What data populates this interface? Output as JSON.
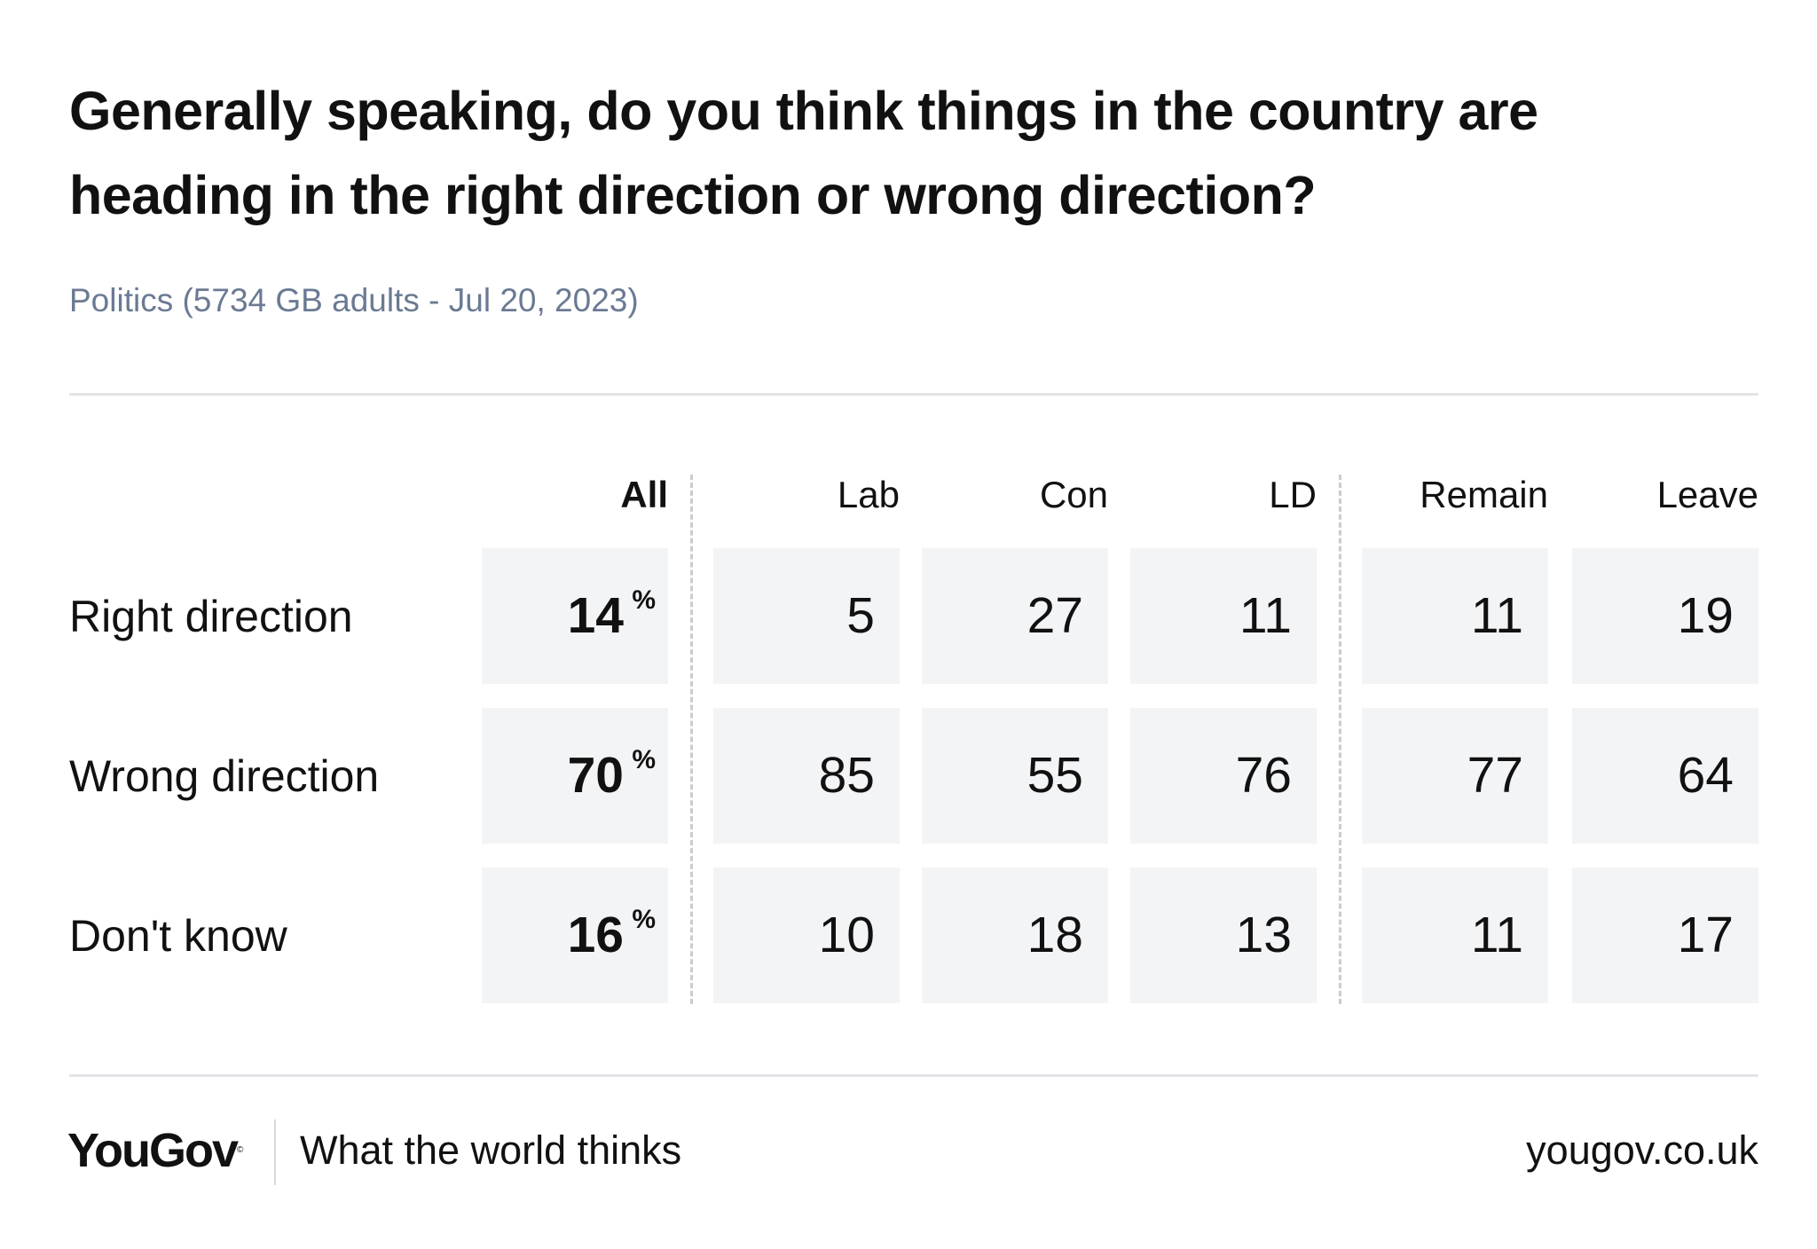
{
  "chart_data": {
    "type": "table",
    "title": "Generally speaking, do you think things in the country are heading in the right direction or wrong direction?",
    "subtitle": "Politics (5734 GB adults - Jul 20, 2023)",
    "columns": [
      "All",
      "Lab",
      "Con",
      "LD",
      "Remain",
      "Leave"
    ],
    "percent_symbol": "%",
    "rows": [
      {
        "label": "Right direction",
        "values": [
          "14",
          "5",
          "27",
          "11",
          "11",
          "19"
        ]
      },
      {
        "label": "Wrong direction",
        "values": [
          "70",
          "85",
          "55",
          "76",
          "77",
          "64"
        ]
      },
      {
        "label": "Don't know",
        "values": [
          "16",
          "10",
          "18",
          "13",
          "11",
          "17"
        ]
      }
    ]
  },
  "footer": {
    "logo": "YouGov",
    "tagline": "What the world thinks",
    "url": "yougov.co.uk"
  },
  "colors": {
    "cell_background": "#f3f4f6",
    "subtitle": "#6b7a93",
    "rule": "#e3e4e8"
  }
}
